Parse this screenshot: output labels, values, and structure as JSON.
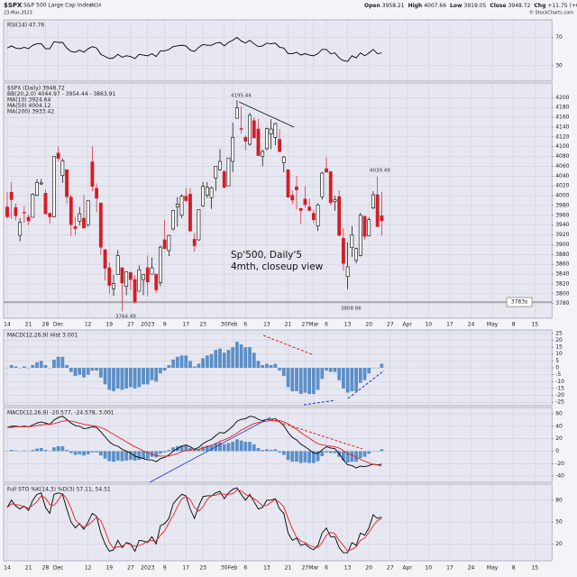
{
  "header": {
    "symbol": "$SPX",
    "name": "S&P 500 Large Cap Index",
    "exchange": "INDX",
    "date": "23-Mar-2023",
    "credit": "© StockCharts.com",
    "quote": [
      {
        "label": "Open",
        "value": 3958.21
      },
      {
        "label": "High",
        "value": 4007.66
      },
      {
        "label": "Low",
        "value": 3919.05
      },
      {
        "label": "Close",
        "value": 3948.72
      },
      {
        "label": "Chg",
        "text": "+11.75 (+0.30%)"
      }
    ]
  },
  "x_axis": {
    "xlim": [
      0,
      128
    ],
    "xticks": [
      {
        "value": 0,
        "label": "14"
      },
      {
        "value": 5,
        "label": "21"
      },
      {
        "value": 9,
        "label": "28"
      },
      {
        "value": 12,
        "label": "Dec"
      },
      {
        "value": 19,
        "label": "12"
      },
      {
        "value": 24,
        "label": "19"
      },
      {
        "value": 29,
        "label": "27"
      },
      {
        "value": 33,
        "label": "2023"
      },
      {
        "value": 37,
        "label": "9"
      },
      {
        "value": 42,
        "label": "17"
      },
      {
        "value": 46,
        "label": "23"
      },
      {
        "value": 51,
        "label": "30"
      },
      {
        "value": 53,
        "label": "Feb"
      },
      {
        "value": 56,
        "label": "6"
      },
      {
        "value": 61,
        "label": "13"
      },
      {
        "value": 66,
        "label": "21"
      },
      {
        "value": 70,
        "label": "27"
      },
      {
        "value": 72,
        "label": "Mar"
      },
      {
        "value": 75,
        "label": "6"
      },
      {
        "value": 80,
        "label": "13"
      },
      {
        "value": 85,
        "label": "20"
      },
      {
        "value": 90,
        "label": "27"
      },
      {
        "value": 94,
        "label": "Apr"
      },
      {
        "value": 99,
        "label": "10"
      },
      {
        "value": 104,
        "label": "17"
      },
      {
        "value": 109,
        "label": "24"
      },
      {
        "value": 114,
        "label": "May"
      },
      {
        "value": 119,
        "label": "8"
      },
      {
        "value": 124,
        "label": "15"
      }
    ]
  },
  "chart_data": [
    {
      "type": "line",
      "legend": "RSI(14) 47.76",
      "ylim": [
        8,
        95
      ],
      "yticks": [
        70,
        30
      ],
      "series": [
        {
          "color": "#000000",
          "values": [
            55,
            58,
            55,
            54,
            56,
            54,
            59,
            61,
            61,
            54,
            54,
            64,
            63,
            63,
            55,
            50,
            49,
            52,
            49,
            54,
            57,
            55,
            46,
            43,
            40,
            41,
            46,
            42,
            44,
            43,
            40,
            46,
            45,
            44,
            47,
            43,
            51,
            51,
            53,
            57,
            58,
            59,
            58,
            52,
            50,
            56,
            60,
            59,
            59,
            62,
            63,
            58,
            63,
            66,
            70,
            65,
            62,
            66,
            61,
            57,
            58,
            62,
            61,
            62,
            56,
            55,
            47,
            47,
            49,
            45,
            47,
            45,
            44,
            47,
            53,
            53,
            47,
            48,
            41,
            37,
            36,
            44,
            41,
            48,
            44,
            48,
            53,
            47,
            48
          ]
        }
      ]
    },
    {
      "type": "candlestick",
      "legend": [
        "$SPX (Daily) 3948.72",
        "BB(20,2.0) 4044.97 - 3954.44 - 3863.91",
        "MA(10) 3924.64",
        "MA(50) 4004.12",
        "MA(200) 3933.42"
      ],
      "ylim": [
        3750,
        4230
      ],
      "yticks": [
        3780,
        3800,
        3820,
        3840,
        3860,
        3880,
        3900,
        3920,
        3940,
        3960,
        3980,
        4000,
        4020,
        4040,
        4060,
        4080,
        4100,
        4120,
        4140,
        4160,
        4180,
        4200
      ],
      "up_color": "#000000",
      "down_color": "#d41c24",
      "support": {
        "value": 3783,
        "label": "3783s"
      },
      "annotations": [
        "4195.44",
        "3764.49",
        "3808.86",
        "4039.49",
        "Sp'500, Daily'5",
        "4mth, closeup view"
      ],
      "open": [
        3977,
        4007,
        3976,
        3919,
        3966,
        3956,
        3956,
        4001,
        4024,
        4005,
        3964,
        3957,
        4087,
        4041,
        4053,
        3997,
        3937,
        3948,
        3954,
        3940,
        4069,
        4015,
        3985,
        3890,
        3853,
        3810,
        3839,
        3853,
        3815,
        3843,
        3829,
        3805,
        3829,
        3853,
        3840,
        3840,
        3823,
        3910,
        3888,
        3932,
        3977,
        3960,
        3999,
        4003,
        3911,
        3910,
        3979,
        4001,
        3996,
        4036,
        4053,
        4049,
        4020,
        4070,
        4158,
        4137,
        4119,
        4105,
        4153,
        4136,
        4080,
        4096,
        4126,
        4119,
        4115,
        4067,
        4053,
        4001,
        4018,
        3974,
        3993,
        3977,
        3964,
        3938,
        3998,
        4055,
        4049,
        3988,
        3998,
        3913,
        3835,
        3894,
        3868,
        3878,
        3958,
        3918,
        3975,
        4002,
        3959
      ],
      "high": [
        4008,
        4028,
        3984,
        3954,
        3979,
        3962,
        4005,
        4034,
        4034,
        4012,
        3966,
        4080,
        4101,
        4076,
        4053,
        4002,
        3957,
        3977,
        4002,
        3990,
        4101,
        4025,
        3985,
        3890,
        3864,
        3839,
        3889,
        3853,
        3846,
        3846,
        3838,
        3858,
        3839,
        3878,
        3874,
        3840,
        3898,
        3951,
        3920,
        3970,
        3997,
        4003,
        4016,
        4016,
        3924,
        3972,
        4028,
        4028,
        4019,
        4060,
        4095,
        4053,
        4077,
        4149,
        4195,
        4182,
        4123,
        4169,
        4160,
        4157,
        4094,
        4139,
        4156,
        4149,
        4136,
        4081,
        4053,
        4011,
        4040,
        3974,
        4019,
        3994,
        3971,
        3985,
        4049,
        4078,
        4050,
        4000,
        4011,
        3934,
        3905,
        3938,
        3894,
        3965,
        3959,
        3956,
        4009,
        4039,
        4008
      ],
      "low": [
        3953,
        3953,
        3950,
        3907,
        3944,
        3940,
        3956,
        3999,
        4022,
        3962,
        3943,
        3956,
        4070,
        4026,
        3984,
        3918,
        3919,
        3939,
        3934,
        3937,
        4009,
        3966,
        3879,
        3827,
        3800,
        3796,
        3839,
        3764,
        3797,
        3807,
        3780,
        3805,
        3797,
        3795,
        3840,
        3802,
        3815,
        3892,
        3877,
        3929,
        3937,
        3954,
        3987,
        3926,
        3886,
        3908,
        3977,
        3995,
        3973,
        4010,
        4051,
        4015,
        4021,
        4048,
        4158,
        4126,
        4093,
        4102,
        4117,
        4081,
        4060,
        4092,
        4095,
        4103,
        4089,
        4048,
        3997,
        3982,
        3972,
        3943,
        3976,
        3968,
        3944,
        3928,
        3992,
        4048,
        3981,
        3969,
        3918,
        3847,
        3809,
        3875,
        3862,
        3876,
        3910,
        3917,
        3972,
        3937,
        3919
      ],
      "close": [
        3957,
        3992,
        3959,
        3946,
        3965,
        3949,
        4003,
        4027,
        4026,
        3963,
        3957,
        4080,
        4076,
        4071,
        3998,
        3941,
        3933,
        3963,
        3934,
        3990,
        4019,
        3995,
        3895,
        3852,
        3817,
        3821,
        3878,
        3822,
        3845,
        3829,
        3783,
        3849,
        3839,
        3824,
        3853,
        3808,
        3895,
        3892,
        3919,
        3970,
        3983,
        3999,
        3990,
        3928,
        3898,
        3972,
        4019,
        4017,
        4016,
        4060,
        4070,
        4017,
        4077,
        4119,
        4179,
        4136,
        4111,
        4164,
        4118,
        4082,
        4090,
        4137,
        4136,
        4147,
        4090,
        4079,
        3997,
        3991,
        4012,
        3970,
        3982,
        3970,
        3951,
        3981,
        4046,
        4048,
        3986,
        3992,
        3919,
        3862,
        3855,
        3920,
        3892,
        3960,
        3917,
        3951,
        4002,
        3937,
        3949
      ]
    },
    {
      "type": "bar",
      "legend": "MACD(12,26,9) Hist 3.001",
      "ylim": [
        -27.5,
        27.5
      ],
      "yticks": [
        25,
        20,
        15,
        10,
        5,
        0,
        -5,
        -10,
        -15,
        -20,
        -25
      ],
      "color": "#5b8fc7",
      "values": [
        0,
        2,
        1,
        0,
        1,
        0,
        2,
        4,
        5,
        2,
        0,
        6,
        8,
        8,
        2,
        -3,
        -6,
        -5,
        -7,
        -5,
        -2,
        -2,
        -7,
        -12,
        -16,
        -17,
        -15,
        -16,
        -15,
        -14,
        -15,
        -14,
        -12,
        -12,
        -9,
        -10,
        -4,
        -2,
        2,
        6,
        8,
        9,
        9,
        5,
        1,
        3,
        7,
        9,
        10,
        13,
        14,
        11,
        13,
        15,
        19,
        17,
        15,
        15,
        11,
        5,
        2,
        3,
        2,
        3,
        -2,
        -6,
        -14,
        -17,
        -17,
        -19,
        -18,
        -19,
        -19,
        -16,
        -8,
        -2,
        -3,
        -3,
        -9,
        -15,
        -18,
        -17,
        -17,
        -11,
        -9,
        -4,
        0,
        0,
        3
      ]
    },
    {
      "type": "line",
      "legend": "MACD(12,26,9) -20.577, -24.578, 3.001",
      "ylim": [
        -50,
        70
      ],
      "yticks": [
        60,
        40,
        20,
        0,
        -20,
        -40
      ],
      "histogram_overlay": true,
      "series": [
        {
          "color": "#000000",
          "values": [
            38,
            40,
            40,
            39,
            40,
            39,
            42,
            45,
            47,
            45,
            43,
            50,
            54,
            56,
            51,
            45,
            41,
            40,
            36,
            37,
            39,
            38,
            31,
            23,
            15,
            10,
            8,
            3,
            0,
            -3,
            -8,
            -10,
            -12,
            -14,
            -14,
            -17,
            -12,
            -10,
            -6,
            0,
            4,
            8,
            10,
            7,
            3,
            6,
            12,
            16,
            19,
            25,
            30,
            29,
            34,
            40,
            48,
            51,
            52,
            56,
            55,
            51,
            49,
            51,
            51,
            52,
            47,
            41,
            30,
            22,
            18,
            11,
            7,
            2,
            -3,
            -4,
            2,
            7,
            5,
            4,
            -4,
            -14,
            -22,
            -23,
            -27,
            -24,
            -25,
            -23,
            -21,
            -22,
            -21
          ]
        },
        {
          "color": "#e02020",
          "values": [
            38,
            38,
            39,
            39,
            39,
            39,
            40,
            41,
            42,
            43,
            43,
            44,
            46,
            48,
            49,
            48,
            47,
            45,
            43,
            42,
            41,
            40,
            38,
            35,
            31,
            27,
            23,
            19,
            15,
            11,
            7,
            4,
            0,
            -2,
            -5,
            -7,
            -8,
            -8,
            -8,
            -6,
            -4,
            -1,
            1,
            2,
            2,
            3,
            5,
            7,
            9,
            12,
            16,
            18,
            21,
            25,
            29,
            34,
            37,
            41,
            44,
            46,
            47,
            48,
            49,
            49,
            49,
            47,
            44,
            39,
            35,
            30,
            25,
            21,
            16,
            12,
            10,
            9,
            8,
            7,
            5,
            1,
            -4,
            -6,
            -10,
            -13,
            -16,
            -19,
            -21,
            -22,
            -24
          ]
        }
      ]
    },
    {
      "type": "line",
      "legend": "Full STO %K(14,3) %D(3) 57.11, 54.51",
      "ylim": [
        -3,
        102
      ],
      "yticks": [
        80,
        50,
        20
      ],
      "series": [
        {
          "color": "#000000",
          "values": [
            70,
            80,
            72,
            68,
            72,
            66,
            80,
            88,
            90,
            70,
            62,
            88,
            90,
            88,
            68,
            50,
            42,
            48,
            40,
            50,
            62,
            58,
            35,
            20,
            10,
            12,
            25,
            15,
            22,
            20,
            10,
            25,
            24,
            22,
            30,
            20,
            45,
            48,
            55,
            75,
            82,
            88,
            86,
            68,
            55,
            72,
            85,
            86,
            86,
            90,
            92,
            82,
            90,
            95,
            97,
            88,
            80,
            88,
            78,
            68,
            70,
            80,
            80,
            82,
            68,
            62,
            35,
            25,
            28,
            18,
            20,
            15,
            12,
            18,
            35,
            42,
            30,
            30,
            15,
            8,
            8,
            22,
            18,
            35,
            32,
            42,
            60,
            55,
            57
          ]
        },
        {
          "color": "#e02020",
          "values": [
            70,
            75,
            74,
            73,
            71,
            69,
            73,
            78,
            86,
            83,
            74,
            73,
            80,
            89,
            82,
            69,
            53,
            47,
            43,
            46,
            51,
            57,
            52,
            38,
            22,
            14,
            16,
            17,
            21,
            19,
            17,
            18,
            20,
            24,
            25,
            24,
            32,
            38,
            49,
            59,
            71,
            82,
            85,
            81,
            70,
            65,
            71,
            81,
            86,
            87,
            89,
            88,
            88,
            89,
            94,
            93,
            88,
            85,
            82,
            78,
            72,
            73,
            77,
            81,
            77,
            71,
            55,
            41,
            29,
            24,
            22,
            18,
            16,
            15,
            22,
            32,
            36,
            34,
            25,
            18,
            10,
            13,
            16,
            25,
            28,
            36,
            45,
            52,
            55
          ]
        }
      ]
    }
  ]
}
